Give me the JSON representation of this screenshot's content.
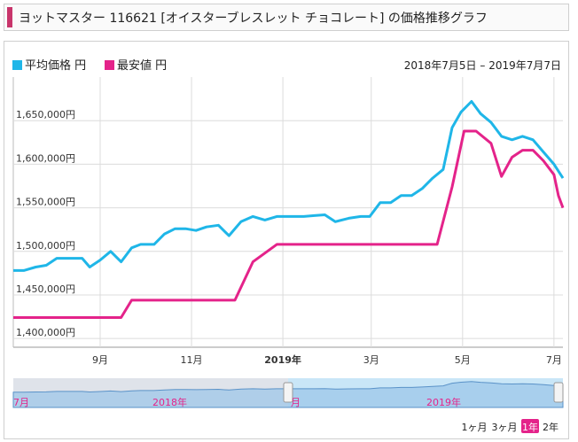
{
  "header": {
    "title": "ヨットマスター 116621 [オイスターブレスレット チョコレート] の価格推移グラフ"
  },
  "colors": {
    "accent": "#c8356b",
    "avg": "#1fb6e8",
    "min": "#e4238a",
    "navigator_fill": "#9ac4e8",
    "navigator_band": "#c9e6f7"
  },
  "chart_data": {
    "type": "line",
    "date_range": "2018年7月5日 – 2019年7月7日",
    "y_tick_labels": [
      "1,400,000円",
      "1,450,000円",
      "1,500,000円",
      "1,550,000円",
      "1,600,000円",
      "1,650,000円"
    ],
    "y_ticks": [
      1400000,
      1450000,
      1500000,
      1550000,
      1600000,
      1650000
    ],
    "ylim": [
      1390000,
      1700000
    ],
    "x_tick_labels": [
      "9月",
      "11月",
      "2019年",
      "3月",
      "5月",
      "7月"
    ],
    "x_ticks": [
      "2018-09-01",
      "2018-11-01",
      "2019-01-01",
      "2019-03-01",
      "2019-05-01",
      "2019-07-01"
    ],
    "xlim": [
      "2018-07-05",
      "2019-07-07"
    ],
    "grid": true,
    "legend_position": "top-left",
    "series": [
      {
        "name": "平均価格 円",
        "color": "#1fb6e8",
        "points": [
          [
            "2018-07-05",
            1478000
          ],
          [
            "2018-07-12",
            1478000
          ],
          [
            "2018-07-20",
            1482000
          ],
          [
            "2018-07-27",
            1484000
          ],
          [
            "2018-08-03",
            1492000
          ],
          [
            "2018-08-10",
            1492000
          ],
          [
            "2018-08-20",
            1492000
          ],
          [
            "2018-08-25",
            1482000
          ],
          [
            "2018-09-01",
            1490000
          ],
          [
            "2018-09-08",
            1500000
          ],
          [
            "2018-09-15",
            1488000
          ],
          [
            "2018-09-22",
            1504000
          ],
          [
            "2018-09-28",
            1508000
          ],
          [
            "2018-10-07",
            1508000
          ],
          [
            "2018-10-14",
            1520000
          ],
          [
            "2018-10-21",
            1526000
          ],
          [
            "2018-10-28",
            1526000
          ],
          [
            "2018-11-04",
            1524000
          ],
          [
            "2018-11-11",
            1528000
          ],
          [
            "2018-11-19",
            1530000
          ],
          [
            "2018-11-26",
            1518000
          ],
          [
            "2018-12-04",
            1534000
          ],
          [
            "2018-12-12",
            1540000
          ],
          [
            "2018-12-20",
            1536000
          ],
          [
            "2018-12-28",
            1540000
          ],
          [
            "2019-01-05",
            1540000
          ],
          [
            "2019-01-15",
            1540000
          ],
          [
            "2019-01-22",
            1541000
          ],
          [
            "2019-01-29",
            1542000
          ],
          [
            "2019-02-05",
            1534000
          ],
          [
            "2019-02-14",
            1538000
          ],
          [
            "2019-02-22",
            1540000
          ],
          [
            "2019-02-28",
            1540000
          ],
          [
            "2019-03-07",
            1556000
          ],
          [
            "2019-03-14",
            1556000
          ],
          [
            "2019-03-21",
            1564000
          ],
          [
            "2019-03-28",
            1564000
          ],
          [
            "2019-04-04",
            1572000
          ],
          [
            "2019-04-11",
            1584000
          ],
          [
            "2019-04-18",
            1594000
          ],
          [
            "2019-04-24",
            1642000
          ],
          [
            "2019-04-30",
            1660000
          ],
          [
            "2019-05-07",
            1672000
          ],
          [
            "2019-05-13",
            1658000
          ],
          [
            "2019-05-20",
            1648000
          ],
          [
            "2019-05-27",
            1632000
          ],
          [
            "2019-06-03",
            1628000
          ],
          [
            "2019-06-10",
            1632000
          ],
          [
            "2019-06-17",
            1628000
          ],
          [
            "2019-06-24",
            1614000
          ],
          [
            "2019-07-01",
            1600000
          ],
          [
            "2019-07-07",
            1584000
          ]
        ]
      },
      {
        "name": "最安値 円",
        "color": "#e4238a",
        "points": [
          [
            "2018-07-05",
            1424000
          ],
          [
            "2018-09-15",
            1424000
          ],
          [
            "2018-09-22",
            1444000
          ],
          [
            "2018-11-30",
            1444000
          ],
          [
            "2018-12-12",
            1488000
          ],
          [
            "2018-12-28",
            1508000
          ],
          [
            "2019-04-14",
            1508000
          ],
          [
            "2019-04-24",
            1574000
          ],
          [
            "2019-05-02",
            1638000
          ],
          [
            "2019-05-10",
            1638000
          ],
          [
            "2019-05-20",
            1624000
          ],
          [
            "2019-05-27",
            1586000
          ],
          [
            "2019-06-03",
            1608000
          ],
          [
            "2019-06-10",
            1616000
          ],
          [
            "2019-06-17",
            1616000
          ],
          [
            "2019-06-24",
            1604000
          ],
          [
            "2019-07-01",
            1588000
          ],
          [
            "2019-07-04",
            1564000
          ],
          [
            "2019-07-07",
            1550000
          ]
        ]
      }
    ]
  },
  "navigator": {
    "year_labels": [
      "2018年",
      "2019年"
    ],
    "month_labels": [
      "7月",
      "月"
    ],
    "selected_range": "1年"
  },
  "range_buttons": [
    {
      "label": "1ヶ月",
      "selected": false
    },
    {
      "label": "3ヶ月",
      "selected": false
    },
    {
      "label": "1年",
      "selected": true
    },
    {
      "label": "2年",
      "selected": false
    }
  ]
}
